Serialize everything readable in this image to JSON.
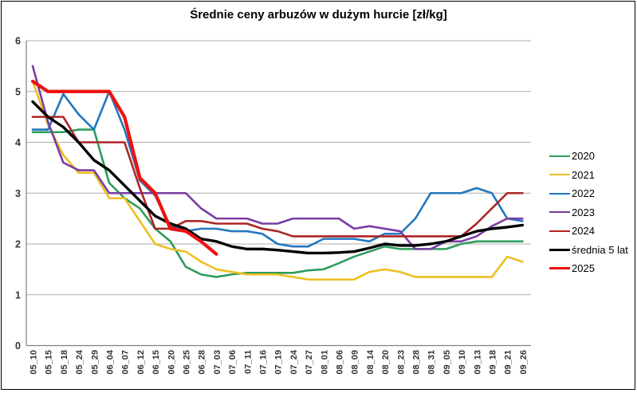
{
  "frame": {
    "title": "Średnie ceny arbuzów w dużym hurcie [zł/kg]"
  },
  "chart_data": {
    "type": "line",
    "title": "Średnie ceny arbuzów w dużym hurcie [zł/kg]",
    "xlabel": "",
    "ylabel": "",
    "ylim": [
      0,
      6
    ],
    "yticks": [
      0,
      1,
      2,
      3,
      4,
      5,
      6
    ],
    "grid": true,
    "legend_position": "right",
    "axis_color": "#808080",
    "gridline_color": "#ABABAB",
    "label_color": "#333333",
    "categories": [
      "05_10",
      "05_15",
      "05_18",
      "05_24",
      "05_29",
      "06_04",
      "06_07",
      "06_12",
      "06_15",
      "06_20",
      "06_25",
      "06_28",
      "07_03",
      "07_06",
      "07_11",
      "07_16",
      "07_19",
      "07_24",
      "07_27",
      "08_01",
      "08_06",
      "08_09",
      "08_14",
      "08_20",
      "08_23",
      "08_28",
      "08_31",
      "09_05",
      "09_10",
      "09_13",
      "09_18",
      "09_21",
      "09_26"
    ],
    "series": [
      {
        "name": "2020",
        "color": "#2E9C5C",
        "width": 2.6,
        "values": [
          4.2,
          4.2,
          4.2,
          4.25,
          4.25,
          3.2,
          2.9,
          2.7,
          2.3,
          2.05,
          1.55,
          1.4,
          1.35,
          1.4,
          1.43,
          1.43,
          1.43,
          1.43,
          1.48,
          1.5,
          1.62,
          1.75,
          1.85,
          1.95,
          1.9,
          1.9,
          1.9,
          1.9,
          2.0,
          2.05,
          2.05,
          2.05,
          2.05
        ]
      },
      {
        "name": "2021",
        "color": "#EDBF1E",
        "width": 2.6,
        "values": [
          5.2,
          4.35,
          3.75,
          3.4,
          3.4,
          2.9,
          2.9,
          2.45,
          2.0,
          1.9,
          1.85,
          1.65,
          1.5,
          1.45,
          1.4,
          1.4,
          1.4,
          1.35,
          1.3,
          1.3,
          1.3,
          1.3,
          1.45,
          1.5,
          1.45,
          1.35,
          1.35,
          1.35,
          1.35,
          1.35,
          1.35,
          1.75,
          1.65
        ]
      },
      {
        "name": "2022",
        "color": "#2377BE",
        "width": 2.6,
        "values": [
          4.25,
          4.25,
          4.95,
          4.55,
          4.25,
          5.0,
          4.25,
          3.25,
          2.95,
          2.35,
          2.25,
          2.3,
          2.3,
          2.25,
          2.25,
          2.2,
          2.0,
          1.95,
          1.95,
          2.1,
          2.1,
          2.1,
          2.05,
          2.2,
          2.2,
          2.5,
          3.0,
          3.0,
          3.0,
          3.1,
          3.0,
          2.5,
          2.45
        ]
      },
      {
        "name": "2023",
        "color": "#7A3CA3",
        "width": 2.6,
        "values": [
          5.5,
          4.4,
          3.6,
          3.45,
          3.45,
          3.0,
          3.0,
          3.0,
          3.0,
          3.0,
          3.0,
          2.7,
          2.5,
          2.5,
          2.5,
          2.4,
          2.4,
          2.5,
          2.5,
          2.5,
          2.5,
          2.3,
          2.35,
          2.3,
          2.25,
          1.9,
          1.9,
          2.05,
          2.05,
          2.15,
          2.35,
          2.5,
          2.5
        ]
      },
      {
        "name": "2024",
        "color": "#AD2424",
        "width": 2.6,
        "values": [
          4.5,
          4.5,
          4.5,
          4.0,
          4.0,
          4.0,
          4.0,
          3.1,
          2.3,
          2.3,
          2.45,
          2.45,
          2.4,
          2.4,
          2.4,
          2.3,
          2.25,
          2.15,
          2.15,
          2.15,
          2.15,
          2.15,
          2.15,
          2.15,
          2.15,
          2.15,
          2.15,
          2.15,
          2.15,
          2.4,
          2.7,
          3.0,
          3.0
        ]
      },
      {
        "name": "średnia 5 lat",
        "color": "#000000",
        "width": 3.4,
        "values": [
          4.8,
          4.5,
          4.3,
          4.0,
          3.65,
          3.45,
          3.15,
          2.85,
          2.55,
          2.4,
          2.3,
          2.1,
          2.05,
          1.95,
          1.9,
          1.9,
          1.88,
          1.85,
          1.82,
          1.82,
          1.83,
          1.85,
          1.92,
          2.0,
          1.97,
          1.97,
          2.0,
          2.05,
          2.15,
          2.25,
          2.3,
          2.33,
          2.37
        ]
      },
      {
        "name": "2025",
        "color": "#EE1111",
        "width": 4.2,
        "values": [
          5.2,
          5.0,
          5.0,
          5.0,
          5.0,
          5.0,
          4.5,
          3.3,
          3.0,
          2.3,
          2.25,
          2.05,
          1.8,
          null,
          null,
          null,
          null,
          null,
          null,
          null,
          null,
          null,
          null,
          null,
          null,
          null,
          null,
          null,
          null,
          null,
          null,
          null,
          null
        ]
      }
    ]
  }
}
